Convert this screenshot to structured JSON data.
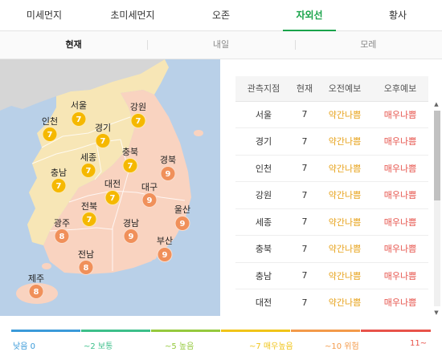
{
  "category_tabs": [
    {
      "label": "미세먼지",
      "active": false
    },
    {
      "label": "초미세먼지",
      "active": false
    },
    {
      "label": "오존",
      "active": false
    },
    {
      "label": "자외선",
      "active": true
    },
    {
      "label": "황사",
      "active": false
    }
  ],
  "day_tabs": [
    {
      "label": "현재",
      "active": true
    },
    {
      "label": "내일",
      "active": false
    },
    {
      "label": "모레",
      "active": false
    }
  ],
  "map": {
    "regions": [
      {
        "name": "서울",
        "value": "7"
      },
      {
        "name": "인천",
        "value": "7"
      },
      {
        "name": "경기",
        "value": "7"
      },
      {
        "name": "강원",
        "value": "7"
      },
      {
        "name": "세종",
        "value": "7"
      },
      {
        "name": "충북",
        "value": "7"
      },
      {
        "name": "충남",
        "value": "7"
      },
      {
        "name": "경북",
        "value": "9"
      },
      {
        "name": "대전",
        "value": "7"
      },
      {
        "name": "대구",
        "value": "9"
      },
      {
        "name": "전북",
        "value": "7"
      },
      {
        "name": "울산",
        "value": "9"
      },
      {
        "name": "광주",
        "value": "8"
      },
      {
        "name": "경남",
        "value": "9"
      },
      {
        "name": "부산",
        "value": "9"
      },
      {
        "name": "전남",
        "value": "8"
      },
      {
        "name": "제주",
        "value": "8"
      }
    ]
  },
  "table": {
    "headers": {
      "site": "관측지점",
      "now": "현재",
      "am": "오전예보",
      "pm": "오후예보"
    },
    "rows": [
      {
        "site": "서울",
        "now": "7",
        "am": "약간나쁨",
        "pm": "매우나쁨"
      },
      {
        "site": "경기",
        "now": "7",
        "am": "약간나쁨",
        "pm": "매우나쁨"
      },
      {
        "site": "인천",
        "now": "7",
        "am": "약간나쁨",
        "pm": "매우나쁨"
      },
      {
        "site": "강원",
        "now": "7",
        "am": "약간나쁨",
        "pm": "매우나쁨"
      },
      {
        "site": "세종",
        "now": "7",
        "am": "약간나쁨",
        "pm": "매우나쁨"
      },
      {
        "site": "충북",
        "now": "7",
        "am": "약간나쁨",
        "pm": "매우나쁨"
      },
      {
        "site": "충남",
        "now": "7",
        "am": "약간나쁨",
        "pm": "매우나쁨"
      },
      {
        "site": "대전",
        "now": "7",
        "am": "약간나쁨",
        "pm": "매우나쁨"
      }
    ]
  },
  "legend": [
    {
      "label": "낮음 0",
      "color": "#3a9ad9"
    },
    {
      "label": "~2 보통",
      "color": "#3cbf8a"
    },
    {
      "label": "~5 높음",
      "color": "#95c93d"
    },
    {
      "label": "~7 매우높음",
      "color": "#f0c419"
    },
    {
      "label": "~10 위험",
      "color": "#f39a4a"
    },
    {
      "label": "11~",
      "color": "#e8534a"
    }
  ],
  "colors": {
    "accent": "#19a34a",
    "sea": "#b9d0e8",
    "land_level7": "#f7e6b6",
    "land_level8_9": "#f9d3c0",
    "badge_level7": "#f5b800",
    "badge_level8_9": "#f0905a",
    "forecast_moderate": "#e7a21a",
    "forecast_bad": "#e6534b"
  }
}
